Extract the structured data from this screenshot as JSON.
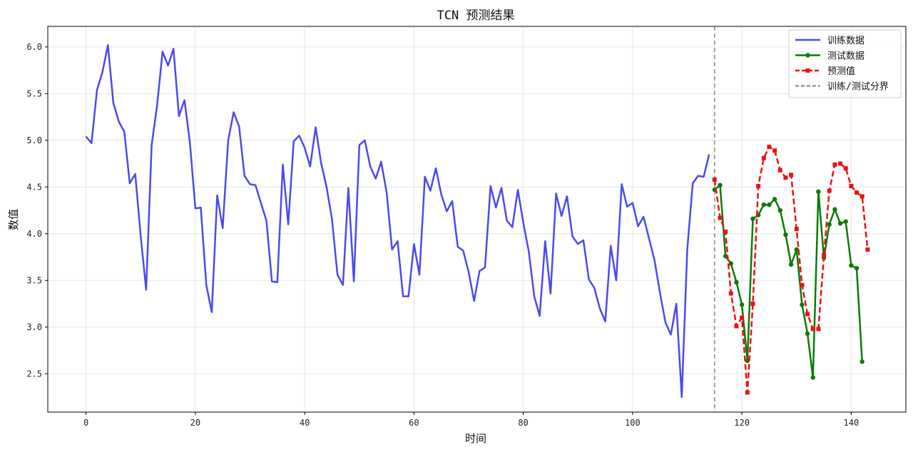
{
  "chart_data": {
    "type": "line",
    "title": "TCN 预测结果",
    "xlabel": "时间",
    "ylabel": "数值",
    "xlim": [
      -7,
      150
    ],
    "ylim": [
      2.09,
      6.22
    ],
    "xticks": [
      0,
      20,
      40,
      60,
      80,
      100,
      120,
      140
    ],
    "yticks": [
      2.5,
      3.0,
      3.5,
      4.0,
      4.5,
      5.0,
      5.5,
      6.0
    ],
    "ytick_labels": [
      "2.5",
      "3.0",
      "3.5",
      "4.0",
      "4.5",
      "5.0",
      "5.5",
      "6.0"
    ],
    "grid": true,
    "legend_position": "top-right",
    "colors": {
      "train": "#4a4aee",
      "test": "#0a7a0a",
      "pred": "#ee1111",
      "split": "#999999"
    },
    "series": [
      {
        "name": "训练数据",
        "style": "line",
        "x": [
          0,
          1,
          2,
          3,
          4,
          5,
          6,
          7,
          8,
          9,
          10,
          11,
          12,
          13,
          14,
          15,
          16,
          17,
          18,
          19,
          20,
          21,
          22,
          23,
          24,
          25,
          26,
          27,
          28,
          29,
          30,
          31,
          32,
          33,
          34,
          35,
          36,
          37,
          38,
          39,
          40,
          41,
          42,
          43,
          44,
          45,
          46,
          47,
          48,
          49,
          50,
          51,
          52,
          53,
          54,
          55,
          56,
          57,
          58,
          59,
          60,
          61,
          62,
          63,
          64,
          65,
          66,
          67,
          68,
          69,
          70,
          71,
          72,
          73,
          74,
          75,
          76,
          77,
          78,
          79,
          80,
          81,
          82,
          83,
          84,
          85,
          86,
          87,
          88,
          89,
          90,
          91,
          92,
          93,
          94,
          95,
          96,
          97,
          98,
          99,
          100,
          101,
          102,
          103,
          104,
          105,
          106,
          107,
          108,
          109,
          110,
          111,
          112,
          113,
          114
        ],
        "y": [
          5.04,
          4.97,
          5.54,
          5.73,
          6.02,
          5.4,
          5.2,
          5.09,
          4.54,
          4.64,
          3.97,
          3.4,
          4.95,
          5.37,
          5.95,
          5.8,
          5.98,
          5.26,
          5.43,
          4.98,
          4.27,
          4.28,
          3.45,
          3.16,
          4.41,
          4.06,
          5.0,
          5.3,
          5.15,
          4.62,
          4.53,
          4.52,
          4.33,
          4.14,
          3.49,
          3.48,
          4.74,
          4.1,
          4.99,
          5.05,
          4.92,
          4.72,
          5.14,
          4.76,
          4.5,
          4.16,
          3.56,
          3.45,
          4.49,
          3.49,
          4.95,
          5.0,
          4.72,
          4.59,
          4.77,
          4.44,
          3.83,
          3.92,
          3.33,
          3.33,
          3.89,
          3.56,
          4.61,
          4.46,
          4.7,
          4.42,
          4.24,
          4.35,
          3.86,
          3.82,
          3.59,
          3.28,
          3.6,
          3.64,
          4.51,
          4.28,
          4.49,
          4.14,
          4.07,
          4.47,
          4.12,
          3.81,
          3.33,
          3.12,
          3.92,
          3.36,
          4.43,
          4.19,
          4.4,
          3.97,
          3.89,
          3.93,
          3.51,
          3.42,
          3.2,
          3.06,
          3.87,
          3.5,
          4.53,
          4.29,
          4.33,
          4.08,
          4.18,
          3.95,
          3.72,
          3.37,
          3.05,
          2.92,
          3.25,
          2.25,
          3.83,
          4.54,
          4.62,
          4.61,
          4.85
        ]
      },
      {
        "name": "测试数据",
        "style": "line-marker-circle",
        "x": [
          115,
          116,
          117,
          118,
          119,
          120,
          121,
          122,
          123,
          124,
          125,
          126,
          127,
          128,
          129,
          130,
          131,
          132,
          133,
          134,
          135,
          136,
          137,
          138,
          139,
          140,
          141,
          142,
          143
        ],
        "y": [
          4.47,
          4.52,
          3.76,
          3.68,
          3.48,
          3.24,
          2.64,
          4.16,
          4.2,
          4.31,
          4.31,
          4.37,
          4.25,
          3.99,
          3.67,
          3.83,
          3.24,
          2.93,
          2.46,
          4.45,
          3.74,
          4.1,
          4.26,
          4.11,
          4.13,
          3.66,
          3.63,
          2.63,
          null
        ]
      },
      {
        "name": "预测值",
        "style": "dashed-marker-square",
        "x": [
          115,
          116,
          117,
          118,
          119,
          120,
          121,
          122,
          123,
          124,
          125,
          126,
          127,
          128,
          129,
          130,
          131,
          132,
          133,
          134,
          135,
          136,
          137,
          138,
          139,
          140,
          141,
          142,
          143
        ],
        "y": [
          4.58,
          4.17,
          4.02,
          3.36,
          3.01,
          3.1,
          2.3,
          3.25,
          4.51,
          4.81,
          4.93,
          4.89,
          4.68,
          4.6,
          4.63,
          4.05,
          3.45,
          3.14,
          2.98,
          2.98,
          3.77,
          4.46,
          4.74,
          4.75,
          4.7,
          4.51,
          4.44,
          4.4,
          3.83
        ]
      },
      {
        "name": "训练/测试分界",
        "style": "vline-dashed",
        "x": 115
      }
    ]
  }
}
